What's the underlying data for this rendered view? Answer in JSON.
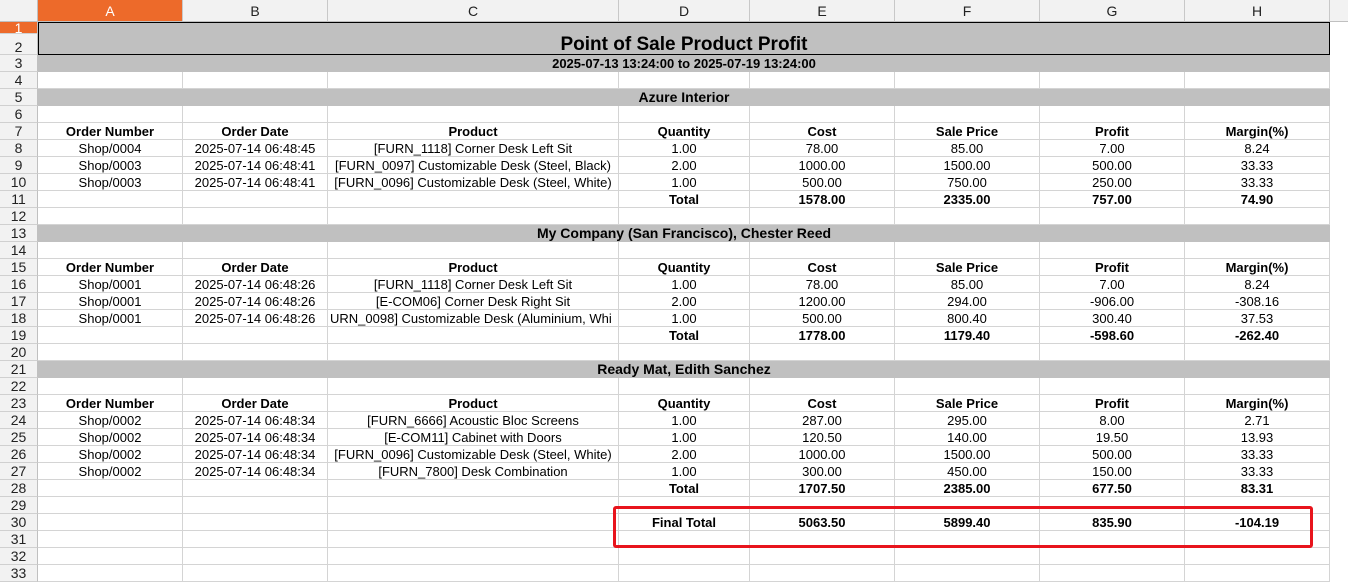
{
  "columns": [
    "A",
    "B",
    "C",
    "D",
    "E",
    "F",
    "G",
    "H"
  ],
  "selected_column": "A",
  "selected_row": "1",
  "report": {
    "title": "Point of Sale Product Profit",
    "date_range": "2025-07-13 13:24:00 to 2025-07-19 13:24:00"
  },
  "headers": [
    "Order Number",
    "Order Date",
    "Product",
    "Quantity",
    "Cost",
    "Sale Price",
    "Profit",
    "Margin(%)"
  ],
  "sections": [
    {
      "name": "Azure Interior",
      "rows": [
        [
          "Shop/0004",
          "2025-07-14 06:48:45",
          "[FURN_1118] Corner Desk Left Sit",
          "1.00",
          "78.00",
          "85.00",
          "7.00",
          "8.24"
        ],
        [
          "Shop/0003",
          "2025-07-14 06:48:41",
          "[FURN_0097] Customizable Desk (Steel, Black)",
          "2.00",
          "1000.00",
          "1500.00",
          "500.00",
          "33.33"
        ],
        [
          "Shop/0003",
          "2025-07-14 06:48:41",
          "[FURN_0096] Customizable Desk (Steel, White)",
          "1.00",
          "500.00",
          "750.00",
          "250.00",
          "33.33"
        ]
      ],
      "total": [
        "Total",
        "1578.00",
        "2335.00",
        "757.00",
        "74.90"
      ]
    },
    {
      "name": "My Company (San Francisco), Chester Reed",
      "rows": [
        [
          "Shop/0001",
          "2025-07-14 06:48:26",
          "[FURN_1118] Corner Desk Left Sit",
          "1.00",
          "78.00",
          "85.00",
          "7.00",
          "8.24"
        ],
        [
          "Shop/0001",
          "2025-07-14 06:48:26",
          "[E-COM06] Corner Desk Right Sit",
          "2.00",
          "1200.00",
          "294.00",
          "-906.00",
          "-308.16"
        ],
        [
          "Shop/0001",
          "2025-07-14 06:48:26",
          "URN_0098] Customizable Desk (Aluminium, Whi",
          "1.00",
          "500.00",
          "800.40",
          "300.40",
          "37.53"
        ]
      ],
      "total": [
        "Total",
        "1778.00",
        "1179.40",
        "-598.60",
        "-262.40"
      ]
    },
    {
      "name": "Ready Mat, Edith Sanchez",
      "rows": [
        [
          "Shop/0002",
          "2025-07-14 06:48:34",
          "[FURN_6666] Acoustic Bloc Screens",
          "1.00",
          "287.00",
          "295.00",
          "8.00",
          "2.71"
        ],
        [
          "Shop/0002",
          "2025-07-14 06:48:34",
          "[E-COM11] Cabinet with Doors",
          "1.00",
          "120.50",
          "140.00",
          "19.50",
          "13.93"
        ],
        [
          "Shop/0002",
          "2025-07-14 06:48:34",
          "[FURN_0096] Customizable Desk (Steel, White)",
          "2.00",
          "1000.00",
          "1500.00",
          "500.00",
          "33.33"
        ],
        [
          "Shop/0002",
          "2025-07-14 06:48:34",
          "[FURN_7800] Desk Combination",
          "1.00",
          "300.00",
          "450.00",
          "150.00",
          "33.33"
        ]
      ],
      "total": [
        "Total",
        "1707.50",
        "2385.00",
        "677.50",
        "83.31"
      ]
    }
  ],
  "final_total": [
    "Final Total",
    "5063.50",
    "5899.40",
    "835.90",
    "-104.19"
  ],
  "colors": {
    "selection": "#ed6a2a",
    "banner": "#c0c0c0",
    "highlight": "#e8141c"
  }
}
